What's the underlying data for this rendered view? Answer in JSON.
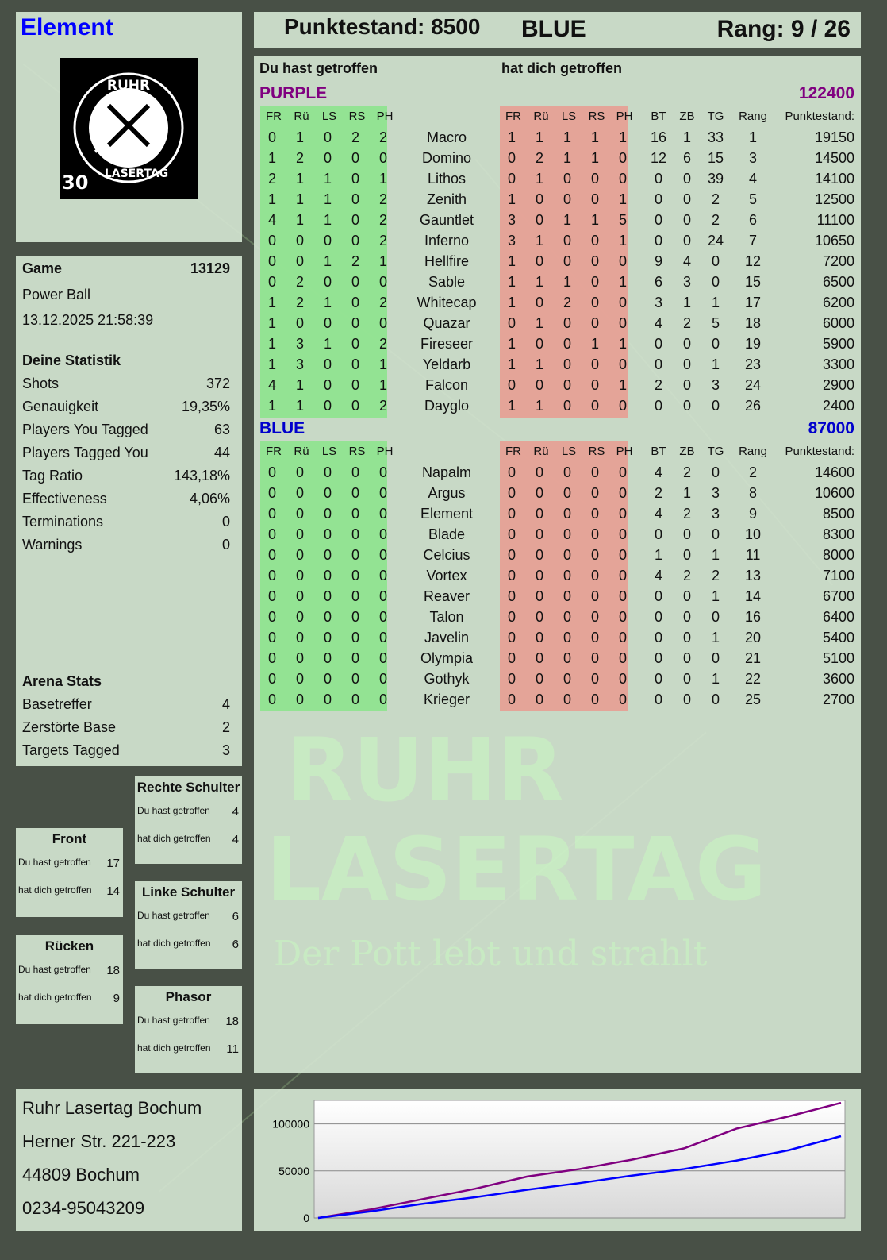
{
  "header": {
    "player_name": "Element",
    "score": "Punktestand: 8500",
    "team": "BLUE",
    "rank": "Rang: 9 / 26"
  },
  "logo": {
    "top": "RUHR",
    "bottom": "LASERTAG",
    "years": "30"
  },
  "game": {
    "label": "Game",
    "id": "13129",
    "mode": "Power Ball",
    "datetime": "13.12.2025 21:58:39"
  },
  "stats": {
    "title": "Deine Statistik",
    "items": [
      {
        "label": "Shots",
        "value": "372"
      },
      {
        "label": "Genauigkeit",
        "value": "19,35%"
      },
      {
        "label": "Players You Tagged",
        "value": "63"
      },
      {
        "label": "Players Tagged You",
        "value": "44"
      },
      {
        "label": "Tag Ratio",
        "value": "143,18%"
      },
      {
        "label": "Effectiveness",
        "value": "4,06%"
      },
      {
        "label": "Terminations",
        "value": "0"
      },
      {
        "label": "Warnings",
        "value": "0"
      }
    ]
  },
  "arena": {
    "title": "Arena Stats",
    "items": [
      {
        "label": "Basetreffer",
        "value": "4"
      },
      {
        "label": "Zerstörte Base",
        "value": "2"
      },
      {
        "label": "Targets Tagged",
        "value": "3"
      }
    ]
  },
  "zones": [
    {
      "title": "Rechte Schulter",
      "hit": "4",
      "got": "4"
    },
    {
      "title": "Front",
      "hit": "17",
      "got": "14"
    },
    {
      "title": "Linke Schulter",
      "hit": "6",
      "got": "6"
    },
    {
      "title": "Rücken",
      "hit": "18",
      "got": "9"
    },
    {
      "title": "Phasor",
      "hit": "18",
      "got": "11"
    }
  ],
  "zone_labels": {
    "hit": "Du hast getroffen",
    "got": "hat dich getroffen"
  },
  "main": {
    "you_hit": "Du hast getroffen",
    "hit_you": "hat dich getroffen",
    "columns": {
      "zones": [
        "FR",
        "Rü",
        "LS",
        "RS",
        "PH"
      ],
      "extra": [
        "BT",
        "ZB",
        "TG",
        "Rang"
      ],
      "score": "Punktestand:"
    },
    "teams": [
      {
        "name": "PURPLE",
        "total": "122400",
        "color": "#800080",
        "players": [
          [
            "Macro",
            [
              0,
              1,
              0,
              2,
              2
            ],
            [
              1,
              1,
              1,
              1,
              1
            ],
            [
              16,
              1,
              33,
              1
            ],
            19150
          ],
          [
            "Domino",
            [
              1,
              2,
              0,
              0,
              0
            ],
            [
              0,
              2,
              1,
              1,
              0
            ],
            [
              12,
              6,
              15,
              3
            ],
            14500
          ],
          [
            "Lithos",
            [
              2,
              1,
              1,
              0,
              1
            ],
            [
              0,
              1,
              0,
              0,
              0
            ],
            [
              0,
              0,
              39,
              4
            ],
            14100
          ],
          [
            "Zenith",
            [
              1,
              1,
              1,
              0,
              2
            ],
            [
              1,
              0,
              0,
              0,
              1
            ],
            [
              0,
              0,
              2,
              5
            ],
            12500
          ],
          [
            "Gauntlet",
            [
              4,
              1,
              1,
              0,
              2
            ],
            [
              3,
              0,
              1,
              1,
              5
            ],
            [
              0,
              0,
              2,
              6
            ],
            11100
          ],
          [
            "Inferno",
            [
              0,
              0,
              0,
              0,
              2
            ],
            [
              3,
              1,
              0,
              0,
              1
            ],
            [
              0,
              0,
              24,
              7
            ],
            10650
          ],
          [
            "Hellfire",
            [
              0,
              0,
              1,
              2,
              1
            ],
            [
              1,
              0,
              0,
              0,
              0
            ],
            [
              9,
              4,
              0,
              12
            ],
            7200
          ],
          [
            "Sable",
            [
              0,
              2,
              0,
              0,
              0
            ],
            [
              1,
              1,
              1,
              0,
              1
            ],
            [
              6,
              3,
              0,
              15
            ],
            6500
          ],
          [
            "Whitecap",
            [
              1,
              2,
              1,
              0,
              2
            ],
            [
              1,
              0,
              2,
              0,
              0
            ],
            [
              3,
              1,
              1,
              17
            ],
            6200
          ],
          [
            "Quazar",
            [
              1,
              0,
              0,
              0,
              0
            ],
            [
              0,
              1,
              0,
              0,
              0
            ],
            [
              4,
              2,
              5,
              18
            ],
            6000
          ],
          [
            "Fireseer",
            [
              1,
              3,
              1,
              0,
              2
            ],
            [
              1,
              0,
              0,
              1,
              1
            ],
            [
              0,
              0,
              0,
              19
            ],
            5900
          ],
          [
            "Yeldarb",
            [
              1,
              3,
              0,
              0,
              1
            ],
            [
              1,
              1,
              0,
              0,
              0
            ],
            [
              0,
              0,
              1,
              23
            ],
            3300
          ],
          [
            "Falcon",
            [
              4,
              1,
              0,
              0,
              1
            ],
            [
              0,
              0,
              0,
              0,
              1
            ],
            [
              2,
              0,
              3,
              24
            ],
            2900
          ],
          [
            "Dayglo",
            [
              1,
              1,
              0,
              0,
              2
            ],
            [
              1,
              1,
              0,
              0,
              0
            ],
            [
              0,
              0,
              0,
              26
            ],
            2400
          ]
        ]
      },
      {
        "name": "BLUE",
        "total": "87000",
        "color": "#0000cc",
        "players": [
          [
            "Napalm",
            [
              0,
              0,
              0,
              0,
              0
            ],
            [
              0,
              0,
              0,
              0,
              0
            ],
            [
              4,
              2,
              0,
              2
            ],
            14600
          ],
          [
            "Argus",
            [
              0,
              0,
              0,
              0,
              0
            ],
            [
              0,
              0,
              0,
              0,
              0
            ],
            [
              2,
              1,
              3,
              8
            ],
            10600
          ],
          [
            "Element",
            [
              0,
              0,
              0,
              0,
              0
            ],
            [
              0,
              0,
              0,
              0,
              0
            ],
            [
              4,
              2,
              3,
              9
            ],
            8500
          ],
          [
            "Blade",
            [
              0,
              0,
              0,
              0,
              0
            ],
            [
              0,
              0,
              0,
              0,
              0
            ],
            [
              0,
              0,
              0,
              10
            ],
            8300
          ],
          [
            "Celcius",
            [
              0,
              0,
              0,
              0,
              0
            ],
            [
              0,
              0,
              0,
              0,
              0
            ],
            [
              1,
              0,
              1,
              11
            ],
            8000
          ],
          [
            "Vortex",
            [
              0,
              0,
              0,
              0,
              0
            ],
            [
              0,
              0,
              0,
              0,
              0
            ],
            [
              4,
              2,
              2,
              13
            ],
            7100
          ],
          [
            "Reaver",
            [
              0,
              0,
              0,
              0,
              0
            ],
            [
              0,
              0,
              0,
              0,
              0
            ],
            [
              0,
              0,
              1,
              14
            ],
            6700
          ],
          [
            "Talon",
            [
              0,
              0,
              0,
              0,
              0
            ],
            [
              0,
              0,
              0,
              0,
              0
            ],
            [
              0,
              0,
              0,
              16
            ],
            6400
          ],
          [
            "Javelin",
            [
              0,
              0,
              0,
              0,
              0
            ],
            [
              0,
              0,
              0,
              0,
              0
            ],
            [
              0,
              0,
              1,
              20
            ],
            5400
          ],
          [
            "Olympia",
            [
              0,
              0,
              0,
              0,
              0
            ],
            [
              0,
              0,
              0,
              0,
              0
            ],
            [
              0,
              0,
              0,
              21
            ],
            5100
          ],
          [
            "Gothyk",
            [
              0,
              0,
              0,
              0,
              0
            ],
            [
              0,
              0,
              0,
              0,
              0
            ],
            [
              0,
              0,
              1,
              22
            ],
            3600
          ],
          [
            "Krieger",
            [
              0,
              0,
              0,
              0,
              0
            ],
            [
              0,
              0,
              0,
              0,
              0
            ],
            [
              0,
              0,
              0,
              25
            ],
            2700
          ]
        ]
      }
    ]
  },
  "watermark": {
    "line1": "RUHR",
    "line2": "LASERTAG",
    "slogan": "Der Pott lebt und strahlt"
  },
  "address": [
    "Ruhr Lasertag Bochum",
    "Herner Str. 221-223",
    "44809 Bochum",
    "0234-95043209"
  ],
  "chart_data": {
    "type": "line",
    "x": [
      0,
      1,
      2,
      3,
      4,
      5,
      6,
      7,
      8,
      9,
      10
    ],
    "ylim": [
      0,
      125000
    ],
    "yticks": [
      "0",
      "50000",
      "100000"
    ],
    "grid": true,
    "series": [
      {
        "color": "#800080",
        "values": [
          0,
          9000,
          20000,
          31000,
          44000,
          52000,
          62000,
          74000,
          95000,
          108000,
          122400
        ]
      },
      {
        "color": "#0000ff",
        "values": [
          0,
          7000,
          15000,
          22000,
          30000,
          37000,
          45000,
          52000,
          61000,
          72000,
          87000
        ]
      }
    ]
  }
}
